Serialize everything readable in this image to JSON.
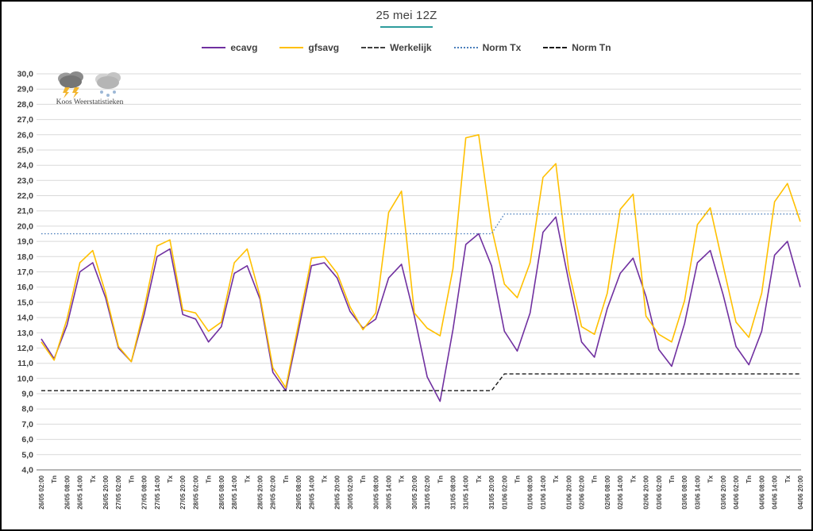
{
  "title": "25 mei 12Z",
  "logo": {
    "label": "Koos Weerstatistieken",
    "icons": [
      "storm-cloud-icon",
      "snow-cloud-icon"
    ]
  },
  "colors": {
    "ecavg": "#7030a0",
    "gfsavg": "#ffc000",
    "werkelijk": "#404040",
    "norm_tx": "#4a7ebb",
    "norm_tn": "#1a1a1a",
    "title_underline": "#2e9c9c",
    "gridline": "#d9d9d9",
    "axis_line": "#8c8c8c",
    "axis_text": "#404040"
  },
  "legend": [
    {
      "label": "ecavg",
      "color": "#7030a0",
      "style": "solid"
    },
    {
      "label": "gfsavg",
      "color": "#ffc000",
      "style": "solid"
    },
    {
      "label": "Werkelijk",
      "color": "#404040",
      "style": "dashed"
    },
    {
      "label": "Norm Tx",
      "color": "#4a7ebb",
      "style": "dotted"
    },
    {
      "label": "Norm Tn",
      "color": "#1a1a1a",
      "style": "dashed"
    }
  ],
  "chart_data": {
    "type": "line",
    "title": "25 mei 12Z",
    "xlabel": "",
    "ylabel": "",
    "ylim": [
      4,
      30
    ],
    "ytick_step": 1,
    "decimal_separator": ",",
    "grid": true,
    "legend_position": "top",
    "xlabel_rotation": 90,
    "categories": [
      "26/05 02:00",
      "Tn",
      "26/05 08:00",
      "26/05 14:00",
      "Tx",
      "26/05 20:00",
      "27/05 02:00",
      "Tn",
      "27/05 08:00",
      "27/05 14:00",
      "Tx",
      "27/05 20:00",
      "28/05 02:00",
      "Tn",
      "28/05 08:00",
      "28/05 14:00",
      "Tx",
      "28/05 20:00",
      "29/05 02:00",
      "Tn",
      "29/05 08:00",
      "29/05 14:00",
      "Tx",
      "29/05 20:00",
      "30/05 02:00",
      "Tn",
      "30/05 08:00",
      "30/05 14:00",
      "Tx",
      "30/05 20:00",
      "31/05 02:00",
      "Tn",
      "31/05 08:00",
      "31/05 14:00",
      "Tx",
      "31/05 20:00",
      "01/06 02:00",
      "Tn",
      "01/06 08:00",
      "01/06 14:00",
      "Tx",
      "01/06 20:00",
      "02/06 02:00",
      "Tn",
      "02/06 08:00",
      "02/06 14:00",
      "Tx",
      "02/06 20:00",
      "03/06 02:00",
      "Tn",
      "03/06 08:00",
      "03/06 14:00",
      "Tx",
      "03/06 20:00",
      "04/06 02:00",
      "Tn",
      "04/06 08:00",
      "04/06 14:00",
      "Tx",
      "04/06 20:00"
    ],
    "series": [
      {
        "name": "ecavg",
        "color": "#7030a0",
        "style": "solid",
        "width": 1.6,
        "values": [
          12.6,
          11.3,
          13.5,
          17.0,
          17.6,
          15.3,
          12.0,
          11.1,
          14.2,
          18.0,
          18.5,
          14.2,
          13.9,
          12.4,
          13.4,
          16.9,
          17.4,
          15.2,
          10.4,
          9.2,
          13.2,
          17.4,
          17.6,
          16.6,
          14.4,
          13.3,
          13.9,
          16.6,
          17.5,
          14.1,
          10.1,
          8.5,
          13.2,
          18.8,
          19.5,
          17.4,
          13.1,
          11.8,
          14.3,
          19.6,
          20.6,
          16.4,
          12.4,
          11.4,
          14.6,
          16.9,
          17.9,
          15.4,
          11.9,
          10.8,
          13.6,
          17.6,
          18.4,
          15.5,
          12.1,
          10.9,
          13.1,
          18.1,
          19.0,
          16.0
        ]
      },
      {
        "name": "gfsavg",
        "color": "#ffc000",
        "style": "solid",
        "width": 1.6,
        "values": [
          12.4,
          11.2,
          13.9,
          17.6,
          18.4,
          15.6,
          12.1,
          11.1,
          14.6,
          18.7,
          19.1,
          14.5,
          14.3,
          13.1,
          13.7,
          17.6,
          18.5,
          15.4,
          10.7,
          9.4,
          13.6,
          17.9,
          18.0,
          16.9,
          14.7,
          13.2,
          14.3,
          20.9,
          22.3,
          14.3,
          13.3,
          12.8,
          17.2,
          25.8,
          26.0,
          19.9,
          16.2,
          15.3,
          17.6,
          23.2,
          24.1,
          17.1,
          13.4,
          12.9,
          15.6,
          21.1,
          22.1,
          14.1,
          12.9,
          12.4,
          15.1,
          20.1,
          21.2,
          17.4,
          13.7,
          12.7,
          15.6,
          21.6,
          22.8,
          20.3
        ]
      },
      {
        "name": "Werkelijk",
        "color": "#404040",
        "style": "dashed",
        "width": 1.4,
        "values": []
      },
      {
        "name": "Norm Tx",
        "color": "#4a7ebb",
        "style": "dotted",
        "width": 1.3,
        "values": [
          19.5,
          19.5,
          19.5,
          19.5,
          19.5,
          19.5,
          19.5,
          19.5,
          19.5,
          19.5,
          19.5,
          19.5,
          19.5,
          19.5,
          19.5,
          19.5,
          19.5,
          19.5,
          19.5,
          19.5,
          19.5,
          19.5,
          19.5,
          19.5,
          19.5,
          19.5,
          19.5,
          19.5,
          19.5,
          19.5,
          19.5,
          19.5,
          19.5,
          19.5,
          19.5,
          19.5,
          20.8,
          20.8,
          20.8,
          20.8,
          20.8,
          20.8,
          20.8,
          20.8,
          20.8,
          20.8,
          20.8,
          20.8,
          20.8,
          20.8,
          20.8,
          20.8,
          20.8,
          20.8,
          20.8,
          20.8,
          20.8,
          20.8,
          20.8,
          20.8
        ]
      },
      {
        "name": "Norm Tn",
        "color": "#1a1a1a",
        "style": "dashed",
        "width": 1.4,
        "values": [
          9.2,
          9.2,
          9.2,
          9.2,
          9.2,
          9.2,
          9.2,
          9.2,
          9.2,
          9.2,
          9.2,
          9.2,
          9.2,
          9.2,
          9.2,
          9.2,
          9.2,
          9.2,
          9.2,
          9.2,
          9.2,
          9.2,
          9.2,
          9.2,
          9.2,
          9.2,
          9.2,
          9.2,
          9.2,
          9.2,
          9.2,
          9.2,
          9.2,
          9.2,
          9.2,
          9.2,
          10.3,
          10.3,
          10.3,
          10.3,
          10.3,
          10.3,
          10.3,
          10.3,
          10.3,
          10.3,
          10.3,
          10.3,
          10.3,
          10.3,
          10.3,
          10.3,
          10.3,
          10.3,
          10.3,
          10.3,
          10.3,
          10.3,
          10.3,
          10.3
        ]
      }
    ]
  }
}
